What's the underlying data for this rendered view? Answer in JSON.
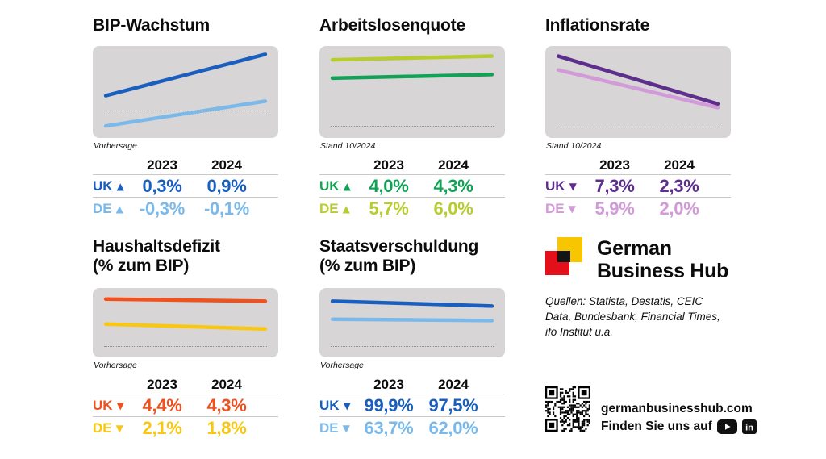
{
  "page": {
    "background": "#ffffff"
  },
  "cards": [
    {
      "title_lines": [
        "BIP-Wachstum"
      ],
      "caption": "Vorhersage",
      "years": [
        "2023",
        "2024"
      ],
      "rows": [
        {
          "label": "UK",
          "arrow": "▲",
          "trend": "up",
          "color": "#1a5fbe",
          "values": [
            "0,3%",
            "0,9%"
          ]
        },
        {
          "label": "DE",
          "arrow": "▲",
          "trend": "up",
          "color": "#7ab9ea",
          "values": [
            "-0,3%",
            "-0,1%"
          ]
        }
      ],
      "chart": {
        "bg": "#d8d5d6",
        "baseline_pct": 70,
        "lines": [
          {
            "name": "UK",
            "color": "#1a5fbe",
            "y1_pct": 54,
            "y2_pct": 9
          },
          {
            "name": "DE",
            "color": "#7ab9ea",
            "y1_pct": 87,
            "y2_pct": 60
          }
        ]
      }
    },
    {
      "title_lines": [
        "Arbeitslosenquote"
      ],
      "caption": "Stand 10/2024",
      "years": [
        "2023",
        "2024"
      ],
      "rows": [
        {
          "label": "UK",
          "arrow": "▲",
          "trend": "up",
          "color": "#12a155",
          "values": [
            "4,0%",
            "4,3%"
          ]
        },
        {
          "label": "DE",
          "arrow": "▲",
          "trend": "up",
          "color": "#b7cc2f",
          "values": [
            "5,7%",
            "6,0%"
          ]
        }
      ],
      "chart": {
        "bg": "#d8d5d6",
        "baseline_pct": 87,
        "lines": [
          {
            "name": "DE",
            "color": "#b7cc2f",
            "y1_pct": 15,
            "y2_pct": 11
          },
          {
            "name": "UK",
            "color": "#12a155",
            "y1_pct": 35,
            "y2_pct": 31
          }
        ]
      }
    },
    {
      "title_lines": [
        "Inflationsrate"
      ],
      "caption": "Stand 10/2024",
      "years": [
        "2023",
        "2024"
      ],
      "rows": [
        {
          "label": "UK",
          "arrow": "▼",
          "trend": "down",
          "color": "#5e2e8d",
          "values": [
            "7,3%",
            "2,3%"
          ]
        },
        {
          "label": "DE",
          "arrow": "▼",
          "trend": "down",
          "color": "#d29ad8",
          "values": [
            "5,9%",
            "2,0%"
          ]
        }
      ],
      "chart": {
        "bg": "#d8d5d6",
        "baseline_pct": 88,
        "lines": [
          {
            "name": "UK",
            "color": "#5e2e8d",
            "y1_pct": 11,
            "y2_pct": 63
          },
          {
            "name": "DE",
            "color": "#d29ad8",
            "y1_pct": 26,
            "y2_pct": 67
          }
        ]
      }
    },
    {
      "title_lines": [
        "Haushaltsdefizit",
        "(% zum BIP)"
      ],
      "caption": "Vorhersage",
      "years": [
        "2023",
        "2024"
      ],
      "rows": [
        {
          "label": "UK",
          "arrow": "▼",
          "trend": "down",
          "color": "#f0521f",
          "values": [
            "4,4%",
            "4,3%"
          ]
        },
        {
          "label": "DE",
          "arrow": "▼",
          "trend": "down",
          "color": "#f8c713",
          "values": [
            "2,1%",
            "1,8%"
          ]
        }
      ],
      "chart": {
        "bg": "#d8d5d6",
        "baseline_pct": 84,
        "lines": [
          {
            "name": "UK",
            "color": "#f0521f",
            "y1_pct": 16,
            "y2_pct": 19
          },
          {
            "name": "DE",
            "color": "#f8c713",
            "y1_pct": 52,
            "y2_pct": 59
          }
        ]
      }
    },
    {
      "title_lines": [
        "Staatsverschuldung",
        "(% zum BIP)"
      ],
      "caption": "Vorhersage",
      "years": [
        "2023",
        "2024"
      ],
      "rows": [
        {
          "label": "UK",
          "arrow": "▼",
          "trend": "down",
          "color": "#1a5fbe",
          "values": [
            "99,9%",
            "97,5%"
          ]
        },
        {
          "label": "DE",
          "arrow": "▼",
          "trend": "down",
          "color": "#7ab9ea",
          "values": [
            "63,7%",
            "62,0%"
          ]
        }
      ],
      "chart": {
        "bg": "#d8d5d6",
        "baseline_pct": 84,
        "lines": [
          {
            "name": "UK",
            "color": "#1a5fbe",
            "y1_pct": 19,
            "y2_pct": 26
          },
          {
            "name": "DE",
            "color": "#7ab9ea",
            "y1_pct": 45,
            "y2_pct": 47
          }
        ]
      }
    }
  ],
  "brand": {
    "name_lines": [
      "German",
      "Business Hub"
    ],
    "sources": "Quellen: Statista, Destatis, CEIC Data, Bundesbank, Financial Times, ifo Institut u.a.",
    "website": "germanbusinesshub.com",
    "social_text": "Finden Sie uns auf",
    "logo_colors": {
      "yellow": "#f7c600",
      "red": "#e30f1a",
      "black": "#141414"
    }
  },
  "chart_data": [
    {
      "type": "line",
      "title": "BIP-Wachstum",
      "x": [
        "2023",
        "2024"
      ],
      "series": [
        {
          "name": "UK",
          "values": [
            0.3,
            0.9
          ]
        },
        {
          "name": "DE",
          "values": [
            -0.3,
            -0.1
          ]
        }
      ],
      "unit": "%",
      "note": "Vorhersage",
      "baseline": 0,
      "legend_position": "table-below",
      "grid": false
    },
    {
      "type": "line",
      "title": "Arbeitslosenquote",
      "x": [
        "2023",
        "2024"
      ],
      "series": [
        {
          "name": "UK",
          "values": [
            4.0,
            4.3
          ]
        },
        {
          "name": "DE",
          "values": [
            5.7,
            6.0
          ]
        }
      ],
      "unit": "%",
      "note": "Stand 10/2024",
      "baseline": 0,
      "legend_position": "table-below",
      "grid": false
    },
    {
      "type": "line",
      "title": "Inflationsrate",
      "x": [
        "2023",
        "2024"
      ],
      "series": [
        {
          "name": "UK",
          "values": [
            7.3,
            2.3
          ]
        },
        {
          "name": "DE",
          "values": [
            5.9,
            2.0
          ]
        }
      ],
      "unit": "%",
      "note": "Stand 10/2024",
      "baseline": 0,
      "legend_position": "table-below",
      "grid": false
    },
    {
      "type": "line",
      "title": "Haushaltsdefizit (% zum BIP)",
      "x": [
        "2023",
        "2024"
      ],
      "series": [
        {
          "name": "UK",
          "values": [
            4.4,
            4.3
          ]
        },
        {
          "name": "DE",
          "values": [
            2.1,
            1.8
          ]
        }
      ],
      "unit": "%",
      "note": "Vorhersage",
      "baseline": 0,
      "legend_position": "table-below",
      "grid": false
    },
    {
      "type": "line",
      "title": "Staatsverschuldung (% zum BIP)",
      "x": [
        "2023",
        "2024"
      ],
      "series": [
        {
          "name": "UK",
          "values": [
            99.9,
            97.5
          ]
        },
        {
          "name": "DE",
          "values": [
            63.7,
            62.0
          ]
        }
      ],
      "unit": "%",
      "note": "Vorhersage",
      "baseline": 0,
      "legend_position": "table-below",
      "grid": false
    }
  ]
}
